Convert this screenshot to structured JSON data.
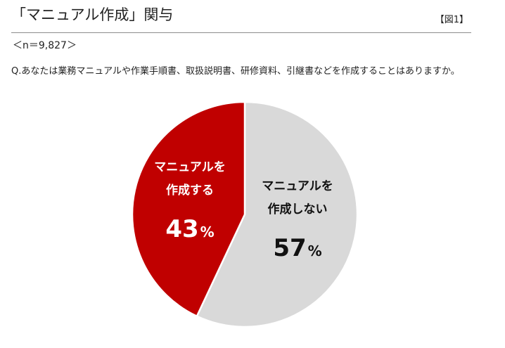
{
  "header": {
    "title": "「マニュアル作成」関与",
    "figure_label": "【図1】"
  },
  "sample": "＜n＝9,827＞",
  "question": "Q.あなたは業務マニュアルや作業手順書、取扱説明書、研修資料、引継書などを作成することはありますか。",
  "chart_data": {
    "type": "pie",
    "title": "",
    "start_angle_deg": 0,
    "direction": "clockwise",
    "slices": [
      {
        "label_lines": [
          "マニュアルを",
          "作成しない"
        ],
        "value": 57,
        "value_text": "57",
        "unit": "%",
        "color": "#d9d9d9",
        "text_color": "#111111"
      },
      {
        "label_lines": [
          "マニュアルを",
          "作成する"
        ],
        "value": 43,
        "value_text": "43",
        "unit": "%",
        "color": "#c00000",
        "text_color": "#ffffff"
      }
    ]
  }
}
